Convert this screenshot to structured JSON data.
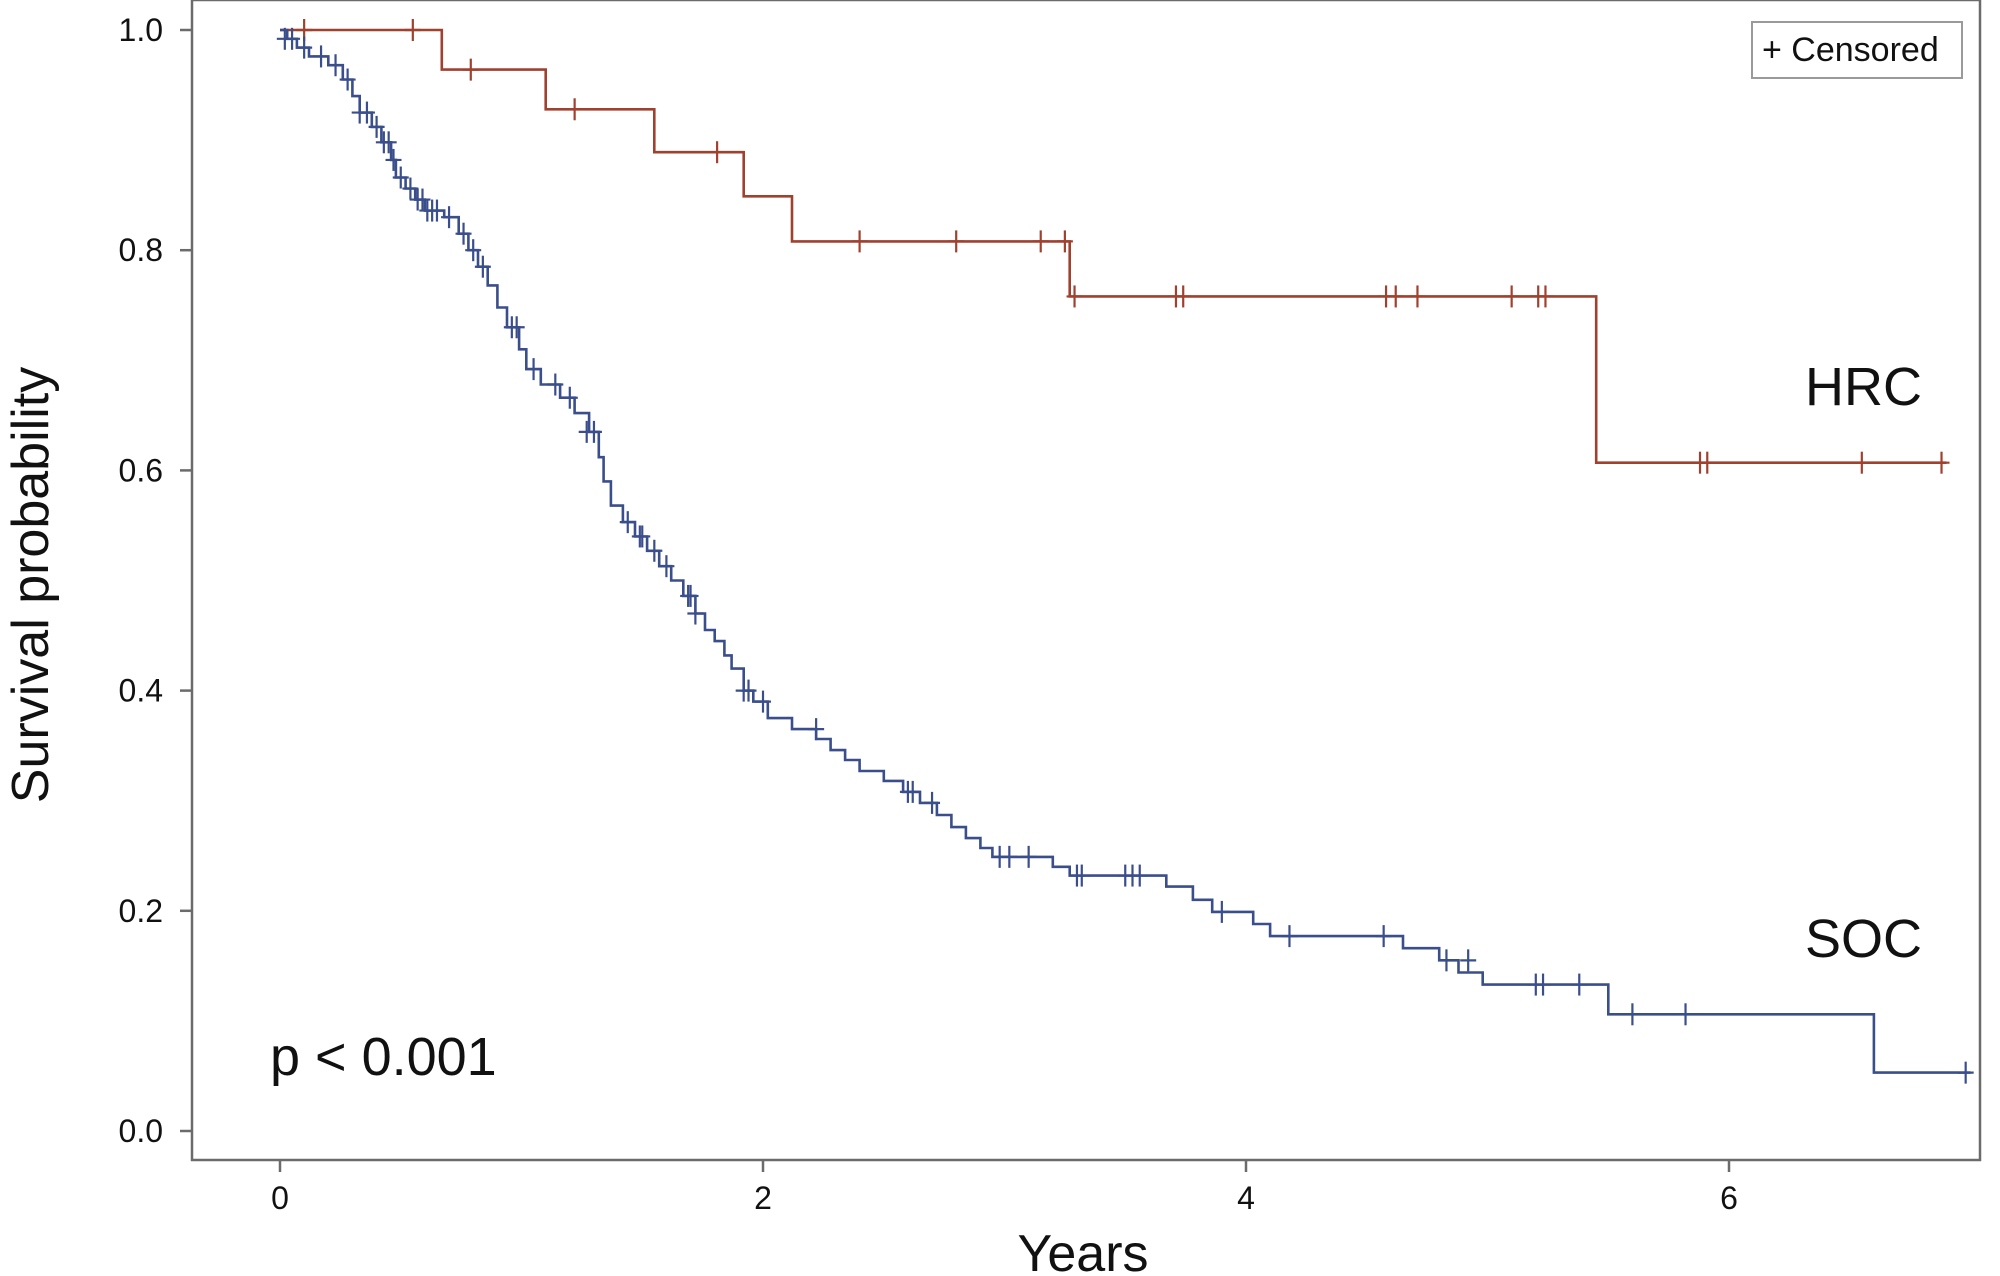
{
  "chart_data": {
    "type": "line",
    "subtype": "kaplan-meier",
    "xlabel": "Years",
    "ylabel": "Survival probability",
    "xlim": [
      -0.35,
      7.1
    ],
    "ylim": [
      -0.05,
      1.02
    ],
    "xticks": [
      0,
      2,
      4,
      6
    ],
    "yticks": [
      0.0,
      0.2,
      0.4,
      0.6,
      0.8,
      1.0
    ],
    "xtick_labels": [
      "0",
      "2",
      "4",
      "6"
    ],
    "ytick_labels": [
      "0.0",
      "0.2",
      "0.4",
      "0.6",
      "0.8",
      "1.0"
    ],
    "legend": {
      "label": "+ Censored",
      "position": "top-right"
    },
    "annotation": "p < 0.001",
    "series": [
      {
        "name": "HRC",
        "color": "#a0412f",
        "steps": [
          [
            0.0,
            1.0
          ],
          [
            0.67,
            0.964
          ],
          [
            1.1,
            0.928
          ],
          [
            1.55,
            0.889
          ],
          [
            1.92,
            0.849
          ],
          [
            2.12,
            0.808
          ],
          [
            3.27,
            0.758
          ],
          [
            5.45,
            0.607
          ]
        ],
        "end_x": 6.9,
        "censored": [
          [
            0.1,
            1.0
          ],
          [
            0.55,
            1.0
          ],
          [
            0.79,
            0.964
          ],
          [
            1.22,
            0.928
          ],
          [
            1.81,
            0.889
          ],
          [
            2.4,
            0.808
          ],
          [
            2.8,
            0.808
          ],
          [
            3.15,
            0.808
          ],
          [
            3.25,
            0.808
          ],
          [
            3.29,
            0.758
          ],
          [
            3.71,
            0.758
          ],
          [
            3.74,
            0.758
          ],
          [
            4.58,
            0.758
          ],
          [
            4.62,
            0.758
          ],
          [
            4.71,
            0.758
          ],
          [
            5.1,
            0.758
          ],
          [
            5.21,
            0.758
          ],
          [
            5.24,
            0.758
          ],
          [
            5.88,
            0.607
          ],
          [
            5.91,
            0.607
          ],
          [
            6.55,
            0.607
          ],
          [
            6.88,
            0.607
          ]
        ]
      },
      {
        "name": "SOC",
        "color": "#3a4e8c",
        "steps": [
          [
            0.0,
            1.0
          ],
          [
            0.03,
            0.992
          ],
          [
            0.07,
            0.984
          ],
          [
            0.12,
            0.976
          ],
          [
            0.2,
            0.968
          ],
          [
            0.26,
            0.955
          ],
          [
            0.3,
            0.94
          ],
          [
            0.33,
            0.925
          ],
          [
            0.38,
            0.912
          ],
          [
            0.42,
            0.898
          ],
          [
            0.46,
            0.882
          ],
          [
            0.48,
            0.866
          ],
          [
            0.52,
            0.856
          ],
          [
            0.56,
            0.846
          ],
          [
            0.6,
            0.836
          ],
          [
            0.68,
            0.83
          ],
          [
            0.74,
            0.815
          ],
          [
            0.78,
            0.8
          ],
          [
            0.82,
            0.785
          ],
          [
            0.86,
            0.768
          ],
          [
            0.9,
            0.748
          ],
          [
            0.94,
            0.73
          ],
          [
            0.99,
            0.71
          ],
          [
            1.02,
            0.692
          ],
          [
            1.08,
            0.678
          ],
          [
            1.16,
            0.666
          ],
          [
            1.22,
            0.652
          ],
          [
            1.28,
            0.635
          ],
          [
            1.32,
            0.612
          ],
          [
            1.34,
            0.59
          ],
          [
            1.37,
            0.568
          ],
          [
            1.42,
            0.553
          ],
          [
            1.47,
            0.54
          ],
          [
            1.52,
            0.527
          ],
          [
            1.57,
            0.513
          ],
          [
            1.62,
            0.5
          ],
          [
            1.67,
            0.486
          ],
          [
            1.72,
            0.47
          ],
          [
            1.76,
            0.455
          ],
          [
            1.8,
            0.445
          ],
          [
            1.84,
            0.432
          ],
          [
            1.87,
            0.42
          ],
          [
            1.92,
            0.4
          ],
          [
            1.96,
            0.39
          ],
          [
            2.02,
            0.375
          ],
          [
            2.12,
            0.365
          ],
          [
            2.22,
            0.356
          ],
          [
            2.28,
            0.346
          ],
          [
            2.34,
            0.337
          ],
          [
            2.4,
            0.327
          ],
          [
            2.5,
            0.318
          ],
          [
            2.58,
            0.308
          ],
          [
            2.65,
            0.298
          ],
          [
            2.72,
            0.287
          ],
          [
            2.78,
            0.276
          ],
          [
            2.84,
            0.266
          ],
          [
            2.9,
            0.257
          ],
          [
            2.95,
            0.249
          ],
          [
            3.2,
            0.24
          ],
          [
            3.27,
            0.232
          ],
          [
            3.67,
            0.222
          ],
          [
            3.78,
            0.21
          ],
          [
            3.86,
            0.199
          ],
          [
            4.03,
            0.188
          ],
          [
            4.1,
            0.177
          ],
          [
            4.65,
            0.166
          ],
          [
            4.8,
            0.155
          ],
          [
            4.88,
            0.144
          ],
          [
            4.98,
            0.133
          ],
          [
            5.5,
            0.122
          ],
          [
            5.5,
            0.106
          ],
          [
            6.6,
            0.053
          ]
        ],
        "end_x": 7.0,
        "censored": [
          [
            0.02,
            0.992
          ],
          [
            0.05,
            0.992
          ],
          [
            0.1,
            0.984
          ],
          [
            0.17,
            0.976
          ],
          [
            0.23,
            0.968
          ],
          [
            0.28,
            0.955
          ],
          [
            0.33,
            0.925
          ],
          [
            0.36,
            0.925
          ],
          [
            0.4,
            0.912
          ],
          [
            0.43,
            0.898
          ],
          [
            0.45,
            0.898
          ],
          [
            0.47,
            0.882
          ],
          [
            0.5,
            0.866
          ],
          [
            0.54,
            0.856
          ],
          [
            0.57,
            0.846
          ],
          [
            0.59,
            0.846
          ],
          [
            0.61,
            0.836
          ],
          [
            0.63,
            0.836
          ],
          [
            0.65,
            0.836
          ],
          [
            0.7,
            0.83
          ],
          [
            0.76,
            0.815
          ],
          [
            0.8,
            0.8
          ],
          [
            0.84,
            0.785
          ],
          [
            0.96,
            0.73
          ],
          [
            0.98,
            0.73
          ],
          [
            1.05,
            0.692
          ],
          [
            1.14,
            0.678
          ],
          [
            1.2,
            0.666
          ],
          [
            1.27,
            0.635
          ],
          [
            1.3,
            0.635
          ],
          [
            1.44,
            0.553
          ],
          [
            1.49,
            0.54
          ],
          [
            1.5,
            0.54
          ],
          [
            1.55,
            0.527
          ],
          [
            1.6,
            0.513
          ],
          [
            1.69,
            0.486
          ],
          [
            1.7,
            0.486
          ],
          [
            1.72,
            0.47
          ],
          [
            1.92,
            0.4
          ],
          [
            1.94,
            0.4
          ],
          [
            2.0,
            0.39
          ],
          [
            2.22,
            0.365
          ],
          [
            2.6,
            0.308
          ],
          [
            2.62,
            0.308
          ],
          [
            2.7,
            0.298
          ],
          [
            2.98,
            0.249
          ],
          [
            3.02,
            0.249
          ],
          [
            3.1,
            0.249
          ],
          [
            3.3,
            0.232
          ],
          [
            3.32,
            0.232
          ],
          [
            3.5,
            0.232
          ],
          [
            3.53,
            0.232
          ],
          [
            3.56,
            0.232
          ],
          [
            3.9,
            0.199
          ],
          [
            4.18,
            0.177
          ],
          [
            4.57,
            0.177
          ],
          [
            4.83,
            0.155
          ],
          [
            4.92,
            0.155
          ],
          [
            5.2,
            0.133
          ],
          [
            5.23,
            0.133
          ],
          [
            5.38,
            0.133
          ],
          [
            5.6,
            0.106
          ],
          [
            5.82,
            0.106
          ],
          [
            6.98,
            0.053
          ]
        ]
      }
    ]
  }
}
